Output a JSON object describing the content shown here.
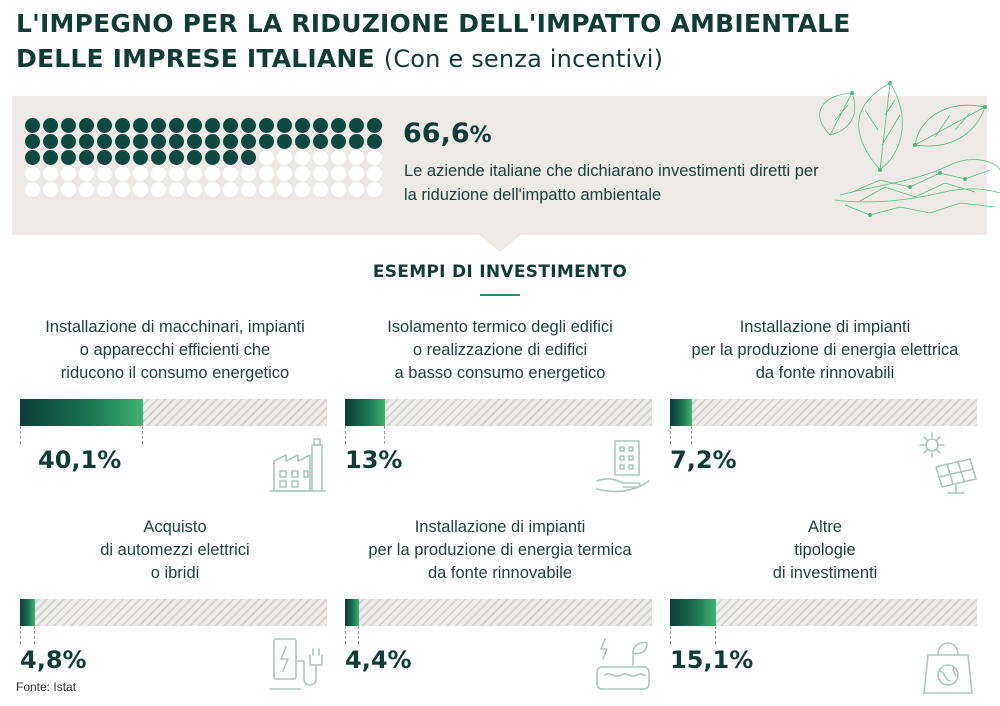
{
  "header": {
    "title_line1": "L'IMPEGNO PER LA RIDUZIONE DELL'IMPATTO AMBIENTALE",
    "title_line2": "DELLE IMPRESE ITALIANE",
    "subtitle": "(Con e senza incentivi)"
  },
  "hero": {
    "percent": "66,6",
    "percent_sign": "%",
    "description": "Le aziende italiane che dichiarano investimenti diretti per la riduzione dell'impatto ambientale"
  },
  "section": {
    "heading": "ESEMPI DI INVESTIMENTO"
  },
  "chart_data": {
    "type": "bar",
    "title": "L'IMPEGNO PER LA RIDUZIONE DELL'IMPATTO AMBIENTALE DELLE IMPRESE ITALIANE (Con e senza incentivi)",
    "headline_value": 66.6,
    "headline_label": "Le aziende italiane che dichiarano investimenti diretti per la riduzione dell'impatto ambientale",
    "categories": [
      "Installazione di macchinari, impianti o apparecchi efficienti che riducono il consumo energetico",
      "Isolamento termico degli edifici o realizzazione di edifici a basso consumo energetico",
      "Installazione di impianti per la produzione di energia elettrica da fonte rinnovabili",
      "Acquisto di automezzi elettrici o ibridi",
      "Installazione di impianti per la produzione di energia termica da fonte rinnovabile",
      "Altre tipologie di investimenti"
    ],
    "values": [
      40.1,
      13,
      7.2,
      4.8,
      4.4,
      15.1
    ],
    "value_labels": [
      "40,1%",
      "13%",
      "7,2%",
      "4,8%",
      "4,4%",
      "15,1%"
    ],
    "ylim": [
      0,
      100
    ],
    "xlabel": "",
    "ylabel": ""
  },
  "cards": [
    {
      "lines": [
        "Installazione di macchinari, impianti",
        "o apparecchi efficienti che",
        "riducono il consumo energetico"
      ],
      "icon": "factory-icon"
    },
    {
      "lines": [
        "Isolamento termico degli edifici",
        "o realizzazione di edifici",
        "a basso consumo energetico"
      ],
      "icon": "building-hand-icon"
    },
    {
      "lines": [
        "Installazione di impianti",
        "per la produzione di energia elettrica",
        "da fonte rinnovabili"
      ],
      "icon": "solar-panel-icon"
    },
    {
      "lines": [
        "Acquisto",
        "di automezzi elettrici",
        "o ibridi"
      ],
      "icon": "ev-charger-icon"
    },
    {
      "lines": [
        "Installazione di impianti",
        "per la produzione di energia termica",
        "da fonte rinnovabile"
      ],
      "icon": "thermal-energy-icon"
    },
    {
      "lines": [
        "Altre",
        "tipologie",
        "di investimenti"
      ],
      "icon": "eco-bag-icon"
    }
  ],
  "colors": {
    "dark": "#0f4a41",
    "accent": "#3cb671",
    "panel": "#ece9e6"
  },
  "footer": {
    "source": "Fonte: Istat"
  }
}
